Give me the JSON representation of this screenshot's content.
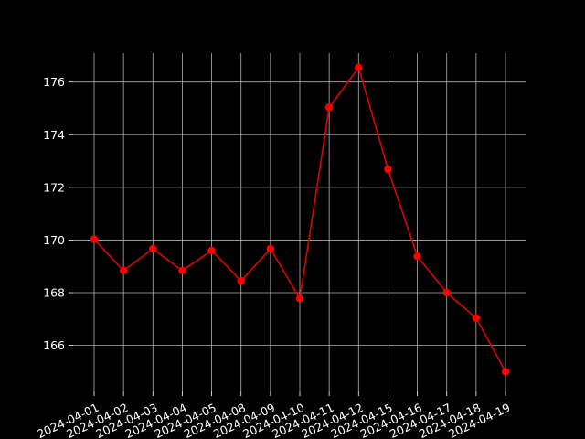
{
  "chart_data": {
    "type": "line",
    "title": "",
    "xlabel": "",
    "ylabel": "",
    "categories": [
      "2024-04-01",
      "2024-04-02",
      "2024-04-03",
      "2024-04-04",
      "2024-04-05",
      "2024-04-08",
      "2024-04-09",
      "2024-04-10",
      "2024-04-11",
      "2024-04-12",
      "2024-04-15",
      "2024-04-16",
      "2024-04-17",
      "2024-04-18",
      "2024-04-19"
    ],
    "series": [
      {
        "values": [
          170.03,
          168.84,
          169.67,
          168.84,
          169.6,
          168.45,
          169.67,
          167.78,
          175.04,
          176.55,
          172.69,
          169.38,
          168.0,
          167.04,
          165.0
        ]
      }
    ],
    "ylim": [
      164.25,
      177.1
    ],
    "yticks": [
      166,
      168,
      170,
      172,
      174,
      176
    ],
    "grid": true,
    "line_color": "#e00000",
    "marker_color": "#ff0000",
    "background": "#000000",
    "grid_color": "#b0b0b0",
    "text_color": "#ffffff"
  }
}
